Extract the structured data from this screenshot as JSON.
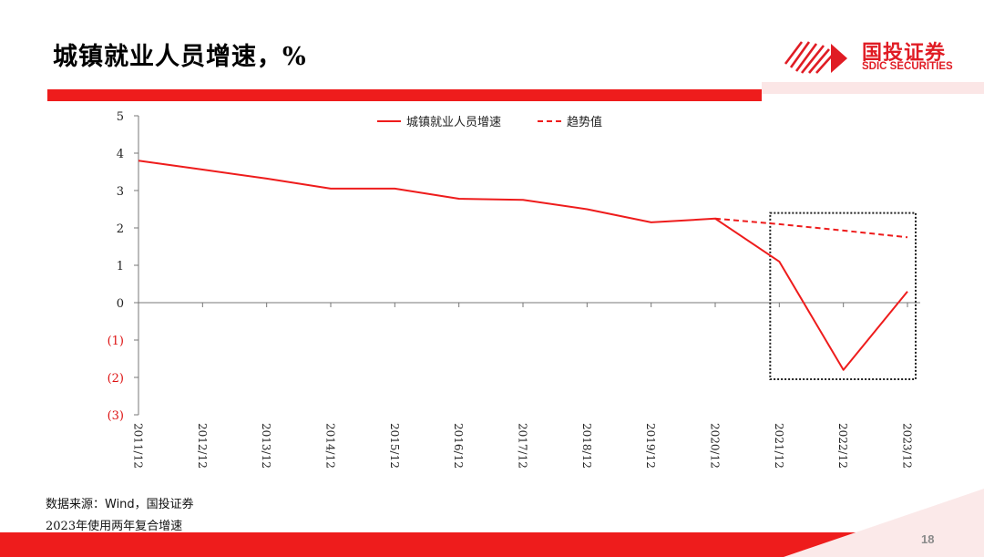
{
  "header": {
    "title": "城镇就业人员增速，%"
  },
  "logo": {
    "name_cn": "国投证券",
    "name_en": "SDIC SECURITIES"
  },
  "chart_data": {
    "type": "line",
    "x": [
      "2011/12",
      "2012/12",
      "2013/12",
      "2014/12",
      "2015/12",
      "2016/12",
      "2017/12",
      "2018/12",
      "2019/12",
      "2020/12",
      "2021/12",
      "2022/12",
      "2023/12"
    ],
    "ylim": [
      -3,
      5
    ],
    "yticks": [
      5,
      4,
      3,
      2,
      1,
      0,
      -1,
      -2,
      -3
    ],
    "ytick_labels": [
      "5",
      "4",
      "3",
      "2",
      "1",
      "0",
      "(1)",
      "(2)",
      "(3)"
    ],
    "series": [
      {
        "name": "城镇就业人员增速",
        "style": "solid",
        "color": "#ee1c1c",
        "values": [
          3.8,
          3.56,
          3.32,
          3.05,
          3.05,
          2.78,
          2.75,
          2.5,
          2.15,
          2.25,
          1.1,
          -1.8,
          0.3
        ]
      },
      {
        "name": "趋势值",
        "style": "dashed",
        "color": "#ee1c1c",
        "values": [
          null,
          null,
          null,
          null,
          null,
          null,
          null,
          null,
          null,
          2.25,
          2.1,
          1.93,
          1.75
        ]
      }
    ],
    "legend_position": "top-center",
    "highlight_box": {
      "x_from": "2021/12",
      "x_to": "2023/12",
      "y_from": 2.4,
      "y_to": -2.05
    }
  },
  "footer": {
    "source": "数据来源：Wind，国投证券",
    "note": "2023年使用两年复合增速",
    "page": "18"
  }
}
